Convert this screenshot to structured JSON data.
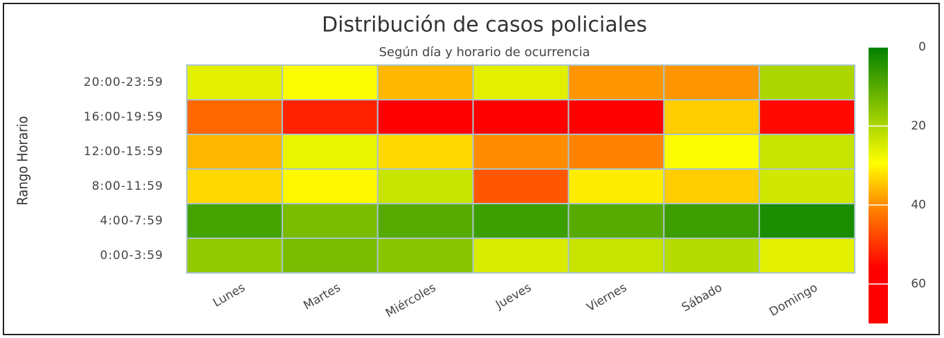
{
  "chart_data": {
    "type": "heatmap",
    "title": "Distribución de casos policiales",
    "subtitle": "Según día y horario de ocurrencia",
    "y_label": "Rango Horario",
    "x": [
      "Lunes",
      "Martes",
      "Miércoles",
      "Jueves",
      "Viernes",
      "Sábado",
      "Domingo"
    ],
    "y": [
      "0:00-3:59",
      "4:00-7:59",
      "8:00-11:59",
      "12:00-15:59",
      "16:00-19:59",
      "20:00-23:59"
    ],
    "z": [
      [
        17,
        14,
        16,
        25,
        23,
        21,
        26
      ],
      [
        8,
        14,
        10,
        7,
        10,
        7,
        3
      ],
      [
        33,
        30,
        23,
        46,
        31,
        34,
        24
      ],
      [
        36,
        27,
        33,
        40,
        41,
        29,
        23
      ],
      [
        44,
        52,
        62,
        65,
        63,
        34,
        55
      ],
      [
        26,
        29,
        36,
        26,
        39,
        39,
        20
      ]
    ],
    "zlim": [
      0,
      70
    ],
    "zticks": [
      0,
      20,
      40,
      60
    ],
    "colorscale": [
      [
        0,
        "#008000"
      ],
      [
        0.42,
        "#ffff00"
      ],
      [
        0.57,
        "#ff8c00"
      ],
      [
        0.8,
        "#ff0000"
      ],
      [
        1,
        "#ff0000"
      ]
    ],
    "cell_border": "#a9c4cc"
  }
}
